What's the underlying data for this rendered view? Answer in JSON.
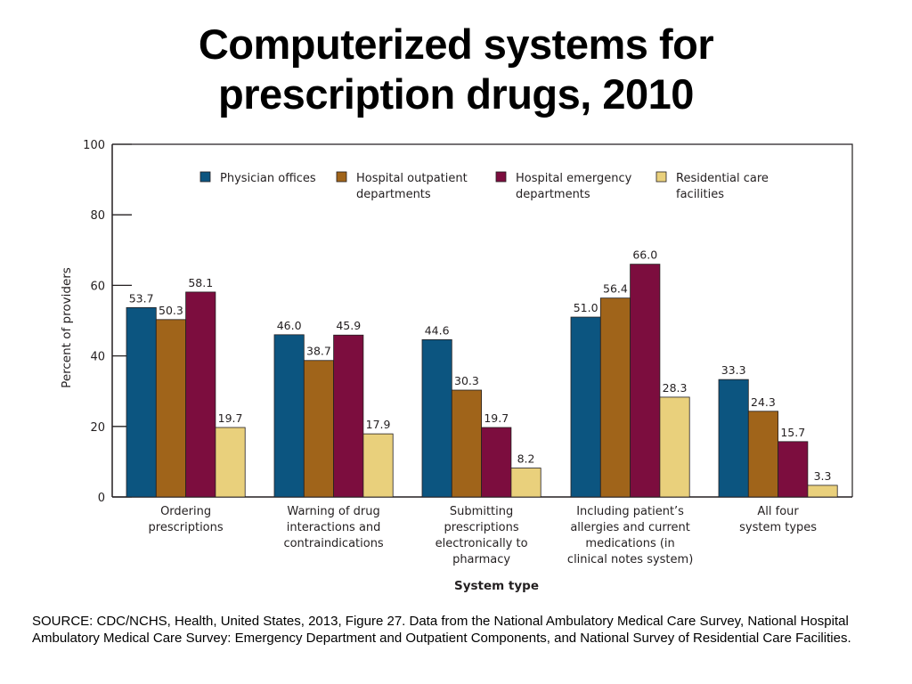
{
  "title_lines": [
    "Computerized systems for",
    "prescription drugs, 2010"
  ],
  "source_note": "SOURCE: CDC/NCHS, Health, United States, 2013, Figure 27. Data from the National Ambulatory Medical Care Survey, National Hospital Ambulatory Medical Care Survey: Emergency Department and Outpatient Components, and National Survey of Residential Care Facilities.",
  "chart_data": {
    "type": "bar",
    "title": "",
    "xlabel": "System type",
    "ylabel": "Percent of providers",
    "ylim": [
      0,
      100
    ],
    "yticks": [
      0,
      20,
      40,
      60,
      80,
      100
    ],
    "grid": false,
    "legend_position": "top",
    "categories": [
      [
        "Ordering",
        "prescriptions"
      ],
      [
        "Warning of drug",
        "interactions and",
        "contraindications"
      ],
      [
        "Submitting",
        "prescriptions",
        "electronically to",
        "pharmacy"
      ],
      [
        "Including patient’s",
        "allergies and current",
        "medications (in",
        "clinical notes system)"
      ],
      [
        "All four",
        "system types"
      ]
    ],
    "series": [
      {
        "name": [
          "Physician offices"
        ],
        "color": "#0c5580",
        "values": [
          53.7,
          46.0,
          44.6,
          51.0,
          33.3
        ],
        "labels": [
          "53.7",
          "46.0",
          "44.6",
          "51.0",
          "33.3"
        ]
      },
      {
        "name": [
          "Hospital outpatient",
          "departments"
        ],
        "color": "#a0641a",
        "values": [
          50.3,
          38.7,
          30.3,
          56.4,
          24.3
        ],
        "labels": [
          "50.3",
          "38.7",
          "30.3",
          "56.4",
          "24.3"
        ]
      },
      {
        "name": [
          "Hospital emergency",
          "departments"
        ],
        "color": "#7c0d3e",
        "values": [
          58.1,
          45.9,
          19.7,
          66.0,
          15.7
        ],
        "labels": [
          "58.1",
          "45.9",
          "19.7",
          "66.0",
          "15.7"
        ]
      },
      {
        "name": [
          "Residential care",
          "facilities"
        ],
        "color": "#e9d07c",
        "values": [
          19.7,
          17.9,
          8.2,
          28.3,
          3.3
        ],
        "labels": [
          "19.7",
          "17.9",
          "8.2",
          "28.3",
          "3.3"
        ]
      }
    ]
  }
}
